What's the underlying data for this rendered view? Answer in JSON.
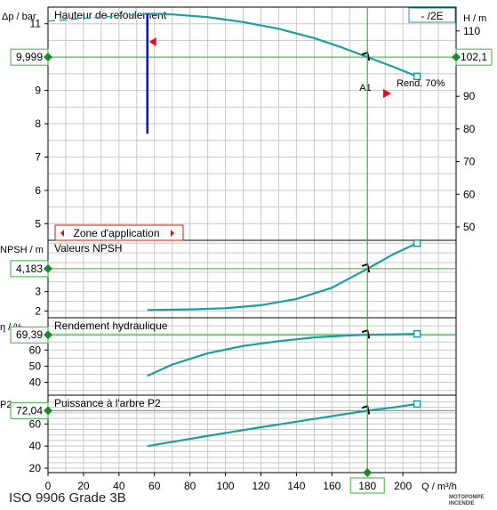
{
  "chart_data": {
    "type": "line",
    "x_axis": {
      "label": "Q  / m³/h",
      "range": [
        0,
        230
      ],
      "ticks": [
        0,
        20,
        40,
        60,
        80,
        100,
        120,
        140,
        160,
        200
      ],
      "operating_point_label": "180"
    },
    "panels": [
      {
        "id": "head",
        "title": "Hauteur de refoulement",
        "left_axis": {
          "label": "Δp / bar",
          "range": [
            4.5,
            11.5
          ],
          "ticks": [
            5,
            6,
            7,
            8,
            9,
            11
          ]
        },
        "right_axis": {
          "label": "H / m",
          "range": [
            45.9,
            117.3
          ],
          "ticks": [
            50,
            60,
            70,
            80,
            90,
            110
          ]
        },
        "left_readout": "9,999",
        "right_readout": "102,1",
        "legend_label": "- /2E",
        "efficiency_label": "Rend.  70%",
        "operating_point_label": "A1",
        "zone_label": "Zone d'application",
        "series": [
          {
            "x": [
              56,
              70,
              90,
              110,
              130,
              150,
              165,
              180,
              195,
              208
            ],
            "y": [
              11.3,
              11.28,
              11.2,
              11.05,
              10.85,
              10.57,
              10.3,
              10.0,
              9.7,
              9.42
            ]
          }
        ],
        "dashed_extension": {
          "x": [
            0,
            56
          ],
          "y": [
            11.08,
            11.3
          ]
        },
        "min_flow_line": {
          "x": 56,
          "y": [
            7.7,
            11.3
          ]
        }
      },
      {
        "id": "npsh",
        "title": "Valeurs NPSH",
        "left_axis": {
          "label": "NPSH / m",
          "range": [
            1.65,
            5.65
          ],
          "ticks": [
            2,
            3
          ]
        },
        "left_readout": "4,183",
        "series": [
          {
            "x": [
              56,
              80,
              100,
              120,
              140,
              160,
              180,
              195,
              208
            ],
            "y": [
              2.05,
              2.08,
              2.14,
              2.3,
              2.62,
              3.2,
              4.18,
              4.95,
              5.5
            ]
          }
        ]
      },
      {
        "id": "efficiency",
        "title": "Rendement hydraulique",
        "left_axis": {
          "label": "η / %",
          "range": [
            32,
            80
          ],
          "ticks": [
            40,
            50,
            60
          ]
        },
        "left_readout": "69,39",
        "series": [
          {
            "x": [
              56,
              70,
              90,
              110,
              130,
              150,
              170,
              180,
              195,
              208
            ],
            "y": [
              44,
              51,
              58,
              62.5,
              65.5,
              67.8,
              69,
              69.39,
              69.7,
              70
            ]
          }
        ]
      },
      {
        "id": "power",
        "title": "Puissance à l'arbre P2",
        "left_axis": {
          "label": "P2",
          "range": [
            16,
            86
          ],
          "ticks": [
            20,
            40,
            60
          ]
        },
        "left_readout": "72,04",
        "series": [
          {
            "x": [
              56,
              80,
              100,
              120,
              140,
              160,
              180,
              195,
              208
            ],
            "y": [
              40,
              46.5,
              51.8,
              57,
              62,
              67,
              72.04,
              75,
              78
            ]
          }
        ]
      }
    ],
    "operating_point": {
      "q": 180,
      "dp": 9.999,
      "h": 102.1,
      "npsh": 4.183,
      "eta": 69.39,
      "p2": 72.04
    },
    "grid": true,
    "colors": {
      "curve": "#1a9e9e",
      "grid": "#c8c8c8",
      "operating_line": "#3fae3f",
      "marker": "#1a8a2a",
      "zone": "#e01010",
      "min_flow": "#1010c8"
    }
  },
  "footer": {
    "standard": "ISO 9906 Grade 3B",
    "brand": "MOTOPOMPE INCENDIE"
  }
}
